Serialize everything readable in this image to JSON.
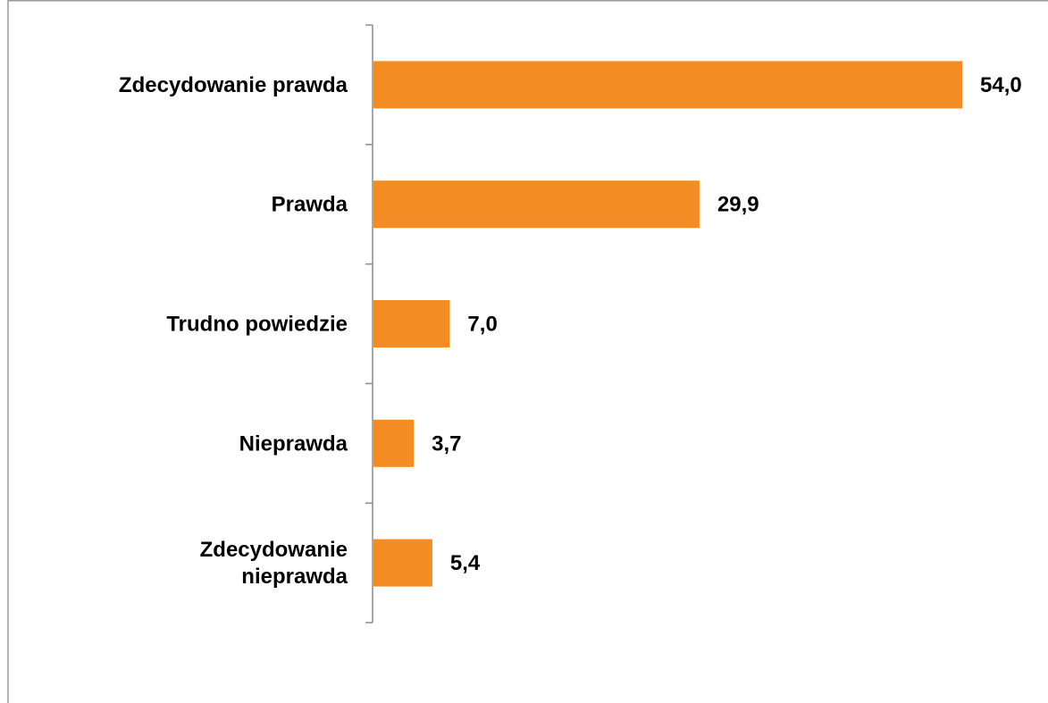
{
  "chart_data": {
    "type": "bar",
    "orientation": "horizontal",
    "categories": [
      [
        "Zdecydowanie prawda"
      ],
      [
        "Prawda"
      ],
      [
        "Trudno powiedzie"
      ],
      [
        "Nieprawda"
      ],
      [
        "Zdecydowanie",
        "nieprawda"
      ]
    ],
    "values": [
      54.0,
      29.9,
      7.0,
      3.7,
      5.4
    ],
    "value_labels": [
      "54,0",
      "29,9",
      "7,0",
      "3,7",
      "5,4"
    ],
    "title": "",
    "xlabel": "",
    "ylabel": "",
    "xlim": [
      0,
      54.0
    ],
    "grid": false,
    "legend": "none",
    "bar_color": "#F28C23",
    "axis_color": "#8C8C8C"
  }
}
